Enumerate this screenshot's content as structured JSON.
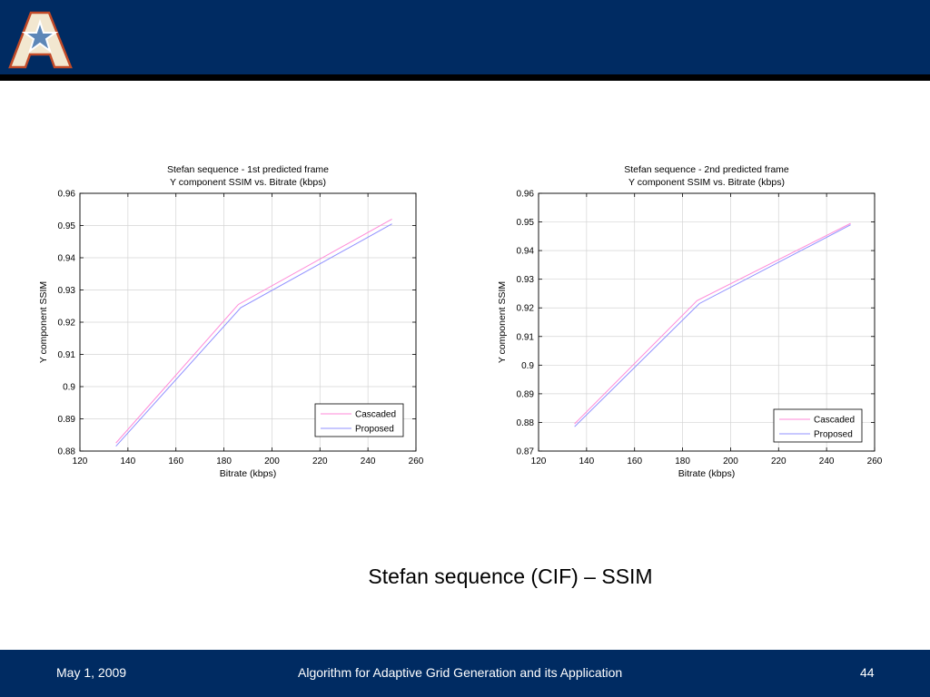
{
  "header": {
    "logo_icon": "university-star-a-logo"
  },
  "colors": {
    "header_bg": "#002b62",
    "cascaded": "#ff8ad8",
    "proposed": "#9090ff"
  },
  "chart_data": [
    {
      "type": "line",
      "title": "Stefan sequence - 1st predicted frame",
      "subtitle": "Y component SSIM vs. Bitrate (kbps)",
      "xlabel": "Bitrate (kbps)",
      "ylabel": "Y component SSIM",
      "xlim": [
        120,
        260
      ],
      "ylim": [
        0.88,
        0.96
      ],
      "xticks": [
        "120",
        "140",
        "160",
        "180",
        "200",
        "220",
        "240",
        "260"
      ],
      "yticks": [
        "0.88",
        "0.89",
        "0.9",
        "0.91",
        "0.92",
        "0.93",
        "0.94",
        "0.95",
        "0.96"
      ],
      "grid": true,
      "legend_position": "bottom-right",
      "series": [
        {
          "name": "Cascaded",
          "x": [
            135,
            186,
            250
          ],
          "y": [
            0.8825,
            0.9255,
            0.952
          ]
        },
        {
          "name": "Proposed",
          "x": [
            135,
            187,
            250
          ],
          "y": [
            0.8815,
            0.9245,
            0.9505
          ]
        }
      ]
    },
    {
      "type": "line",
      "title": "Stefan sequence - 2nd predicted frame",
      "subtitle": "Y component SSIM vs. Bitrate (kbps)",
      "xlabel": "Bitrate (kbps)",
      "ylabel": "Y component SSIM",
      "xlim": [
        120,
        260
      ],
      "ylim": [
        0.87,
        0.96
      ],
      "xticks": [
        "120",
        "140",
        "160",
        "180",
        "200",
        "220",
        "240",
        "260"
      ],
      "yticks": [
        "0.87",
        "0.88",
        "0.89",
        "0.9",
        "0.91",
        "0.92",
        "0.93",
        "0.94",
        "0.95",
        "0.96"
      ],
      "grid": true,
      "legend_position": "bottom-right",
      "series": [
        {
          "name": "Cascaded",
          "x": [
            135,
            186,
            250
          ],
          "y": [
            0.8795,
            0.9225,
            0.9495
          ]
        },
        {
          "name": "Proposed",
          "x": [
            135,
            187,
            250
          ],
          "y": [
            0.8785,
            0.9215,
            0.949
          ]
        }
      ]
    }
  ],
  "caption": "Stefan sequence (CIF) – SSIM",
  "footer": {
    "date": "May 1, 2009",
    "title": "Algorithm for Adaptive Grid Generation and its Application",
    "page": "44"
  }
}
